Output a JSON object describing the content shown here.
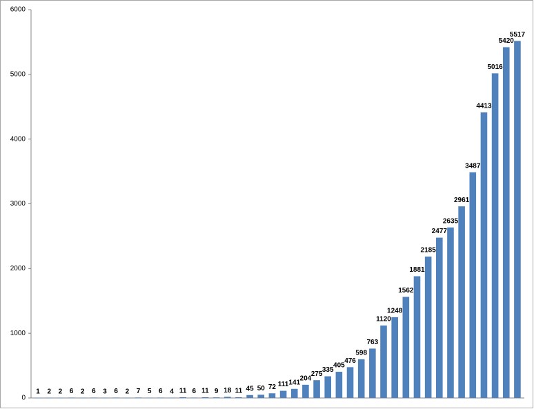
{
  "chart_data": {
    "type": "bar",
    "values": [
      1,
      2,
      2,
      6,
      2,
      6,
      3,
      6,
      2,
      7,
      5,
      6,
      4,
      11,
      6,
      11,
      9,
      18,
      11,
      45,
      50,
      72,
      111,
      141,
      204,
      275,
      335,
      405,
      476,
      598,
      763,
      1120,
      1248,
      1562,
      1881,
      2185,
      2477,
      2635,
      2961,
      3487,
      4413,
      5016,
      5420,
      5517
    ],
    "color": "#4f81bd",
    "ylim": [
      0,
      6000
    ],
    "yticks": [
      0,
      1000,
      2000,
      3000,
      4000,
      5000,
      6000
    ],
    "grid": false
  }
}
